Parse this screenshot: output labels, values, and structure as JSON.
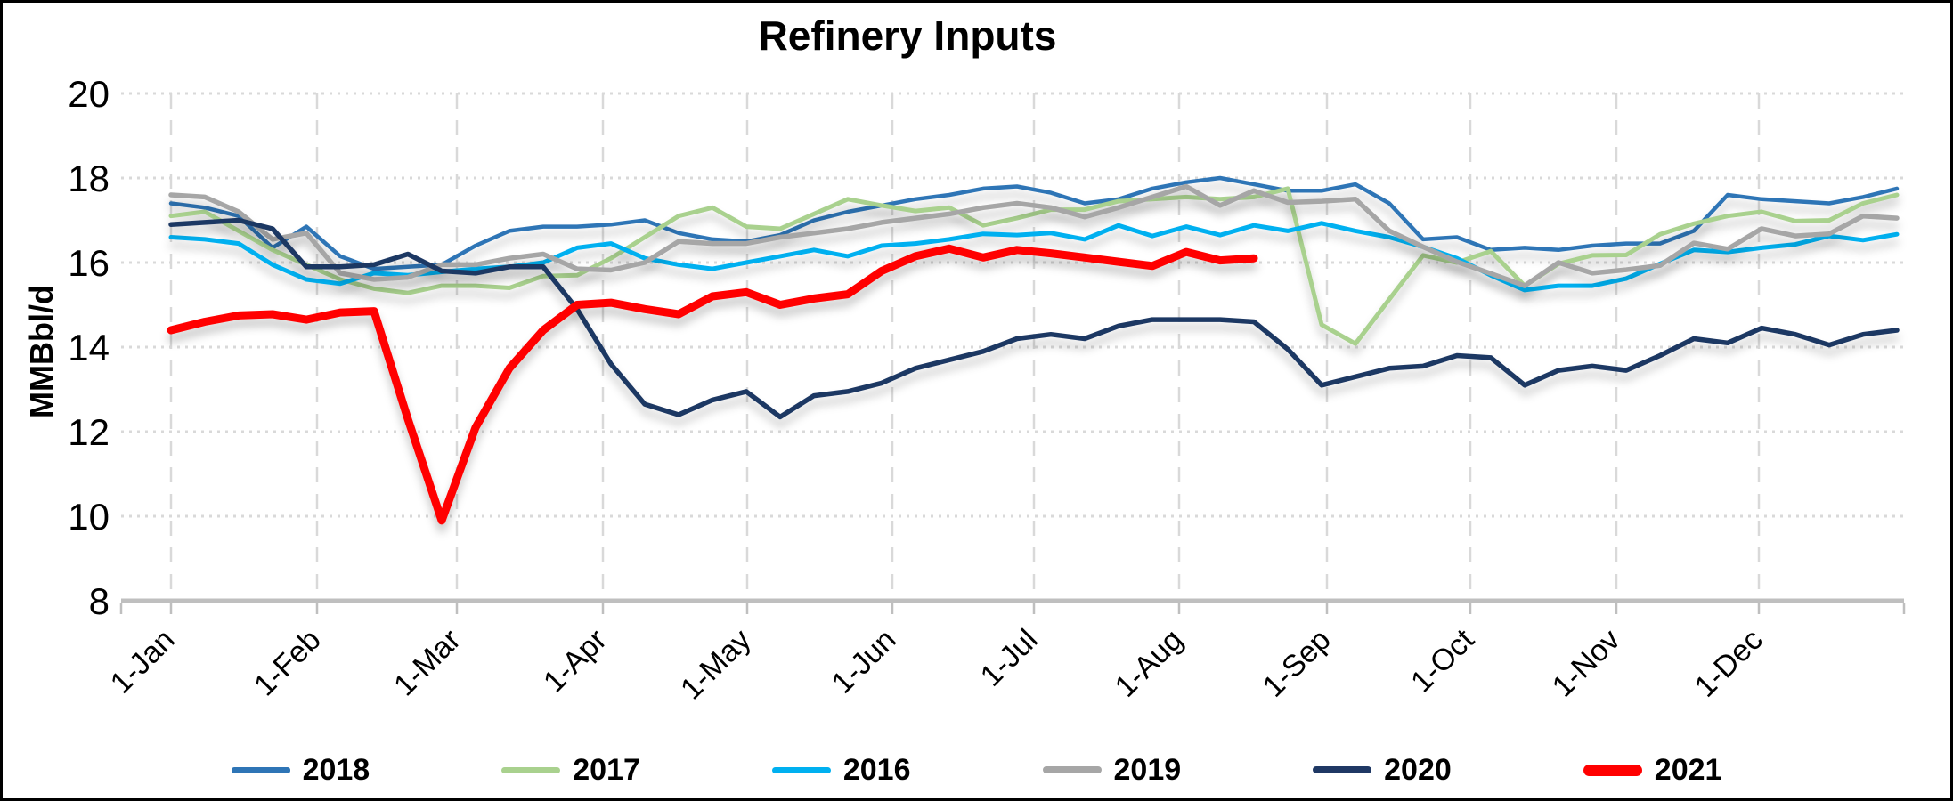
{
  "window": {
    "background_color": "#FFFFFF",
    "border_color": "#000000"
  },
  "chart_data": {
    "type": "line",
    "title": "Refinery Inputs",
    "ylabel": "MMBbl/d",
    "xlabel": "",
    "ylim": [
      8,
      20
    ],
    "yticks": [
      8,
      10,
      12,
      14,
      16,
      18,
      20
    ],
    "x_tick_labels": [
      "1-Jan",
      "1-Feb",
      "1-Mar",
      "1-Apr",
      "1-May",
      "1-Jun",
      "1-Jul",
      "1-Aug",
      "1-Sep",
      "1-Oct",
      "1-Nov",
      "1-Dec"
    ],
    "x_frequency": "weekly",
    "weeks_per_year": 52,
    "grid": true,
    "gridline_color": "#D9D9D9",
    "axis_color": "#BFBFBF",
    "legend_position": "bottom",
    "series": [
      {
        "name": "2018",
        "color": "#2E75B6",
        "width": 4.5,
        "values": [
          17.4,
          17.3,
          17.1,
          16.35,
          16.85,
          16.15,
          15.85,
          15.9,
          15.95,
          16.4,
          16.75,
          16.85,
          16.85,
          16.9,
          17.0,
          16.7,
          16.55,
          16.5,
          16.65,
          17.0,
          17.2,
          17.35,
          17.5,
          17.6,
          17.75,
          17.8,
          17.65,
          17.4,
          17.5,
          17.75,
          17.9,
          18.0,
          17.85,
          17.7,
          17.7,
          17.85,
          17.4,
          16.55,
          16.6,
          16.3,
          16.35,
          16.3,
          16.4,
          16.45,
          16.45,
          16.75,
          17.6,
          17.5,
          17.45,
          17.4,
          17.55,
          17.75
        ]
      },
      {
        "name": "2017",
        "color": "#A9D18E",
        "width": 5,
        "values": [
          17.1,
          17.2,
          16.75,
          16.3,
          15.95,
          15.6,
          15.38,
          15.28,
          15.45,
          15.45,
          15.4,
          15.68,
          15.7,
          16.1,
          16.6,
          17.1,
          17.3,
          16.85,
          16.8,
          17.15,
          17.5,
          17.35,
          17.22,
          17.3,
          16.88,
          17.05,
          17.25,
          17.25,
          17.45,
          17.5,
          17.55,
          17.5,
          17.55,
          17.75,
          14.53,
          14.08,
          15.13,
          16.17,
          16.0,
          16.27,
          15.45,
          15.97,
          16.17,
          16.18,
          16.67,
          16.92,
          17.1,
          17.2,
          16.98,
          17.0,
          17.4,
          17.6
        ]
      },
      {
        "name": "2016",
        "color": "#00B0F0",
        "width": 5,
        "values": [
          16.6,
          16.55,
          16.45,
          15.95,
          15.6,
          15.5,
          15.75,
          15.7,
          15.78,
          15.85,
          15.9,
          16.0,
          16.35,
          16.45,
          16.1,
          15.95,
          15.85,
          16.0,
          16.15,
          16.3,
          16.15,
          16.4,
          16.45,
          16.55,
          16.68,
          16.65,
          16.7,
          16.55,
          16.88,
          16.63,
          16.85,
          16.65,
          16.88,
          16.75,
          16.93,
          16.75,
          16.6,
          16.37,
          16.1,
          15.7,
          15.35,
          15.45,
          15.45,
          15.62,
          15.97,
          16.3,
          16.25,
          16.35,
          16.43,
          16.63,
          16.53,
          16.67
        ]
      },
      {
        "name": "2019",
        "color": "#A6A6A6",
        "width": 5.5,
        "values": [
          17.6,
          17.55,
          17.2,
          16.55,
          16.7,
          15.75,
          15.6,
          15.65,
          15.95,
          15.95,
          16.1,
          16.2,
          15.85,
          15.82,
          16.0,
          16.5,
          16.45,
          16.45,
          16.6,
          16.7,
          16.8,
          16.95,
          17.05,
          17.15,
          17.3,
          17.4,
          17.3,
          17.08,
          17.3,
          17.55,
          17.8,
          17.35,
          17.7,
          17.42,
          17.45,
          17.5,
          16.75,
          16.37,
          16.02,
          15.74,
          15.45,
          16.0,
          15.75,
          15.83,
          15.93,
          16.46,
          16.32,
          16.8,
          16.63,
          16.68,
          17.1,
          17.05
        ]
      },
      {
        "name": "2020",
        "color": "#1F3864",
        "width": 5.5,
        "values": [
          16.9,
          16.95,
          17.0,
          16.8,
          15.9,
          15.9,
          15.95,
          16.2,
          15.8,
          15.75,
          15.9,
          15.9,
          14.9,
          13.6,
          12.65,
          12.4,
          12.75,
          12.95,
          12.35,
          12.85,
          12.95,
          13.15,
          13.5,
          13.7,
          13.9,
          14.2,
          14.3,
          14.2,
          14.5,
          14.65,
          14.65,
          14.65,
          14.6,
          13.95,
          13.1,
          13.3,
          13.5,
          13.55,
          13.8,
          13.75,
          13.1,
          13.45,
          13.55,
          13.45,
          13.8,
          14.2,
          14.1,
          14.45,
          14.3,
          14.05,
          14.3,
          14.4
        ]
      },
      {
        "name": "2021",
        "color": "#FF0000",
        "width": 9,
        "values": [
          14.4,
          14.6,
          14.75,
          14.78,
          14.65,
          14.82,
          14.85,
          12.3,
          9.9,
          12.1,
          13.5,
          14.4,
          15.0,
          15.05,
          14.9,
          14.78,
          15.2,
          15.3,
          15.0,
          15.15,
          15.25,
          15.8,
          16.15,
          16.33,
          16.12,
          16.3,
          16.22,
          16.12,
          16.02,
          15.92,
          16.25,
          16.05,
          16.1
        ]
      }
    ]
  }
}
